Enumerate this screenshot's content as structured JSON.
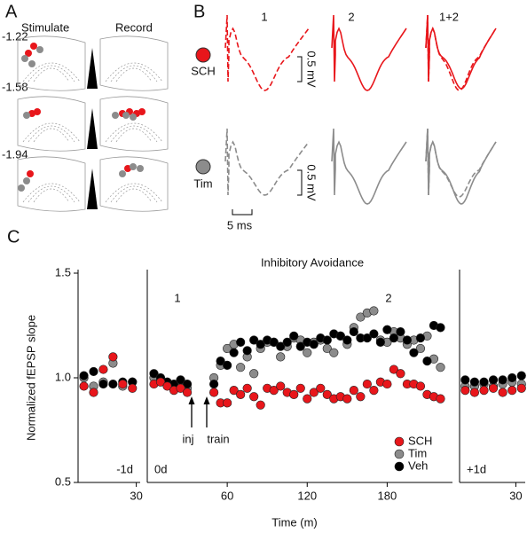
{
  "panel_labels": [
    "A",
    "B",
    "C"
  ],
  "panel_a": {
    "headers": [
      "Stimulate",
      "Record"
    ],
    "levels": [
      "-1.22",
      "-1.58",
      "-1.94"
    ]
  },
  "panel_b": {
    "columns": [
      "1",
      "2",
      "1+2"
    ],
    "rows": [
      "SCH",
      "Tim"
    ],
    "scale_y": [
      "0.5 mV",
      "0.5 mV"
    ],
    "scale_x": "5 ms"
  },
  "figure": {
    "ylabel": "Normalized fEPSP slope",
    "xlabel": "Time (m)"
  },
  "chart_data": [
    {
      "type": "scatter",
      "label": "-1d",
      "x": [
        3,
        8,
        13,
        18,
        23,
        28
      ],
      "xlim": [
        0,
        32
      ],
      "xticks": [
        30
      ],
      "ylim": [
        0.5,
        1.5
      ],
      "yticks": [
        {
          "value": 0.5,
          "label": "0.5"
        },
        {
          "value": 1,
          "label": "1.0"
        },
        {
          "value": 1.5,
          "label": "1.5"
        }
      ],
      "series": [
        {
          "color": "#e8161b",
          "values": [
            0.96,
            0.93,
            1.04,
            1.1,
            0.97,
            0.95
          ]
        },
        {
          "color": "#8c8c8c",
          "values": [
            1.0,
            0.96,
            0.98,
            1.07,
            0.96,
            0.98
          ]
        },
        {
          "color": "#000000",
          "values": [
            1.01,
            1.03,
            0.97,
            0.97,
            0.98,
            0.98
          ]
        }
      ]
    },
    {
      "type": "scatter",
      "title": "Inhibitory Avoidance",
      "label": "0d",
      "annotations": [
        "1",
        "2",
        "inj",
        "train"
      ],
      "legend": "lower right",
      "x": [
        5,
        10,
        15,
        20,
        25,
        30,
        50,
        55,
        60,
        65,
        70,
        75,
        80,
        85,
        90,
        95,
        100,
        105,
        110,
        115,
        120,
        125,
        130,
        135,
        140,
        145,
        150,
        155,
        160,
        165,
        170,
        175,
        180,
        185,
        190,
        195,
        200,
        205,
        210,
        215,
        220
      ],
      "xlim": [
        0,
        229
      ],
      "xticks": [
        60,
        120,
        180
      ],
      "ylim": [
        0.5,
        1.5
      ],
      "series": [
        {
          "name": "SCH",
          "color": "#e8161b",
          "values": [
            0.97,
            0.98,
            0.96,
            0.94,
            0.95,
            0.93,
            0.93,
            0.88,
            0.88,
            0.94,
            0.92,
            0.95,
            0.91,
            0.87,
            0.95,
            0.94,
            0.96,
            0.93,
            0.92,
            0.95,
            0.9,
            0.93,
            0.95,
            0.92,
            0.9,
            0.91,
            0.9,
            0.94,
            0.91,
            0.97,
            0.94,
            0.98,
            0.97,
            1.04,
            1.02,
            0.97,
            0.97,
            0.96,
            0.92,
            0.91,
            0.9
          ]
        },
        {
          "name": "Tim",
          "color": "#8c8c8c",
          "values": [
            1.0,
            0.99,
            0.97,
            0.96,
            0.98,
            0.95,
            1.0,
            1.06,
            1.14,
            1.16,
            1.05,
            1.1,
            1.02,
            1.14,
            1.17,
            1.17,
            1.1,
            1.15,
            1.19,
            1.18,
            1.12,
            1.17,
            1.18,
            1.14,
            1.12,
            1.2,
            1.16,
            1.24,
            1.29,
            1.31,
            1.32,
            1.18,
            1.17,
            1.22,
            1.19,
            1.16,
            1.18,
            1.14,
            1.2,
            1.09,
            1.05
          ]
        },
        {
          "name": "Veh",
          "color": "#000000",
          "values": [
            1.02,
            1.0,
            0.98,
            0.97,
            0.99,
            0.97,
            0.97,
            1.08,
            1.06,
            1.12,
            1.17,
            1.13,
            1.18,
            1.16,
            1.18,
            1.17,
            1.15,
            1.17,
            1.2,
            1.15,
            1.17,
            1.16,
            1.19,
            1.18,
            1.21,
            1.2,
            1.18,
            1.22,
            1.19,
            1.19,
            1.21,
            1.17,
            1.23,
            1.19,
            1.22,
            1.18,
            1.12,
            1.19,
            1.08,
            1.25,
            1.24
          ]
        }
      ]
    },
    {
      "type": "scatter",
      "label": "+1d",
      "x": [
        3,
        8,
        13,
        18,
        23,
        28,
        33
      ],
      "xlim": [
        0,
        35
      ],
      "xticks": [
        30
      ],
      "ylim": [
        0.5,
        1.5
      ],
      "series": [
        {
          "color": "#e8161b",
          "values": [
            0.94,
            0.93,
            0.94,
            0.95,
            0.93,
            0.94,
            0.95
          ]
        },
        {
          "color": "#8c8c8c",
          "values": [
            0.96,
            0.96,
            0.97,
            0.96,
            0.97,
            0.98,
            0.97
          ]
        },
        {
          "color": "#000000",
          "values": [
            0.99,
            0.98,
            0.98,
            0.99,
            0.99,
            1.0,
            1.01
          ]
        }
      ]
    }
  ]
}
